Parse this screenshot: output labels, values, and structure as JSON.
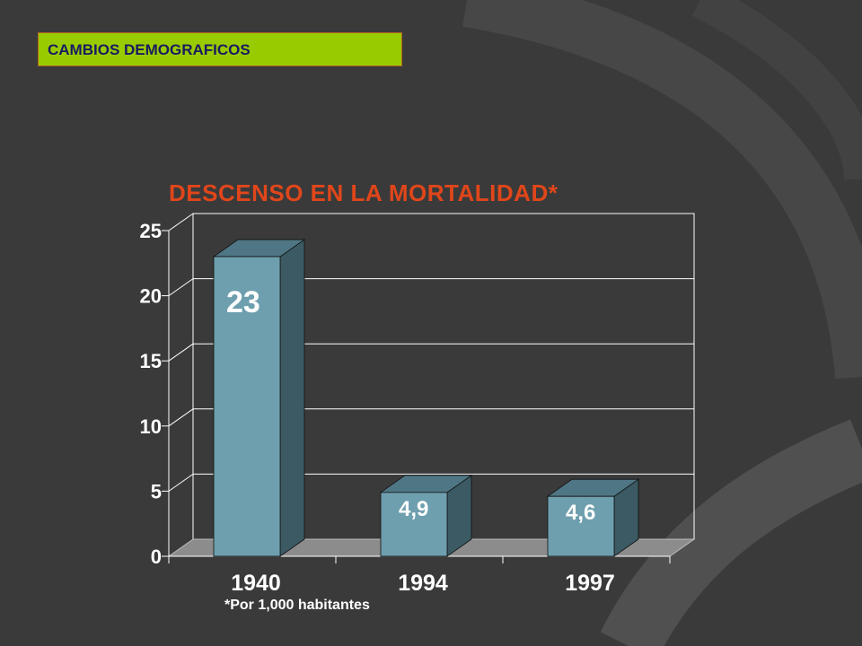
{
  "slide": {
    "section_label": "CAMBIOS DEMOGRAFICOS",
    "footnote": "*Por 1,000 habitantes"
  },
  "colors": {
    "background": "#3a3a3a",
    "label_box": "#99cc00",
    "title": "#e0461a",
    "bar_front": "#6e9fae",
    "bar_top": "#4f7684",
    "bar_side": "#3b5a64",
    "floor": "#8c8c8c",
    "text": "#ffffff"
  },
  "chart_data": {
    "type": "bar",
    "title": "DESCENSO EN LA MORTALIDAD*",
    "categories": [
      "1940",
      "1994",
      "1997"
    ],
    "values": [
      23,
      4.9,
      4.6
    ],
    "value_labels": [
      "23",
      "4,9",
      "4,6"
    ],
    "yticks": [
      "0",
      "5",
      "10",
      "15",
      "20",
      "25"
    ],
    "ylim": [
      0,
      25
    ],
    "grid": true,
    "style": "3d"
  }
}
